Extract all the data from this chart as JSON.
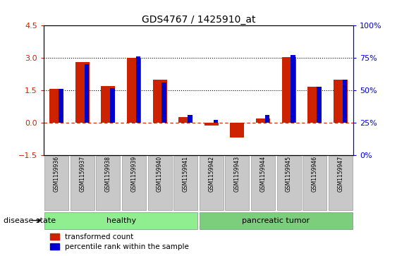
{
  "title": "GDS4767 / 1425910_at",
  "samples": [
    "GSM1159936",
    "GSM1159937",
    "GSM1159938",
    "GSM1159939",
    "GSM1159940",
    "GSM1159941",
    "GSM1159942",
    "GSM1159943",
    "GSM1159944",
    "GSM1159945",
    "GSM1159946",
    "GSM1159947"
  ],
  "red_values": [
    1.55,
    2.8,
    1.7,
    3.0,
    2.0,
    0.25,
    -0.15,
    -0.68,
    0.2,
    3.05,
    1.65,
    2.0
  ],
  "blue_values": [
    1.55,
    2.72,
    1.6,
    3.07,
    1.85,
    0.35,
    0.12,
    -0.02,
    0.35,
    3.15,
    1.65,
    2.0
  ],
  "ylim": [
    -1.5,
    4.5
  ],
  "y2lim": [
    0,
    100
  ],
  "y_ticks": [
    -1.5,
    0,
    1.5,
    3.0,
    4.5
  ],
  "y2_ticks": [
    0,
    25,
    50,
    75,
    100
  ],
  "groups": [
    {
      "label": "healthy",
      "start": 0,
      "end": 5,
      "color": "#90EE90"
    },
    {
      "label": "pancreatic tumor",
      "start": 6,
      "end": 11,
      "color": "#7CCD7C"
    }
  ],
  "disease_label": "disease state",
  "legend_red": "transformed count",
  "legend_blue": "percentile rank within the sample",
  "red_color": "#CC2200",
  "blue_color": "#0000CC",
  "tick_label_bg": "#C8C8C8"
}
